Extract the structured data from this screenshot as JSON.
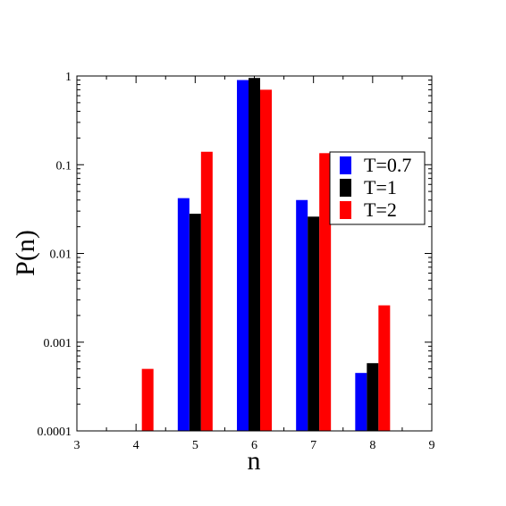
{
  "chart_data": {
    "type": "bar",
    "title": "",
    "xlabel": "n",
    "ylabel": "P(n)",
    "yscale": "log",
    "xlim": [
      3,
      9
    ],
    "ylim": [
      0.0001,
      1
    ],
    "x_ticks": [
      "3",
      "4",
      "5",
      "6",
      "7",
      "8",
      "9"
    ],
    "y_ticks": [
      "0.0001",
      "0.001",
      "0.01",
      "0.1",
      "1"
    ],
    "grid": false,
    "legend_position": "right",
    "series": [
      {
        "name": "T=0.7",
        "color": "#0000ff",
        "x": [
          5,
          6,
          7,
          8
        ],
        "values": [
          0.042,
          0.9,
          0.04,
          0.00045
        ]
      },
      {
        "name": "T=1",
        "color": "#000000",
        "x": [
          5,
          6,
          7,
          8
        ],
        "values": [
          0.028,
          0.95,
          0.026,
          0.00058
        ]
      },
      {
        "name": "T=2",
        "color": "#ff0000",
        "x": [
          4,
          5,
          6,
          7,
          8
        ],
        "values": [
          0.0005,
          0.14,
          0.7,
          0.135,
          0.0026
        ]
      }
    ]
  }
}
